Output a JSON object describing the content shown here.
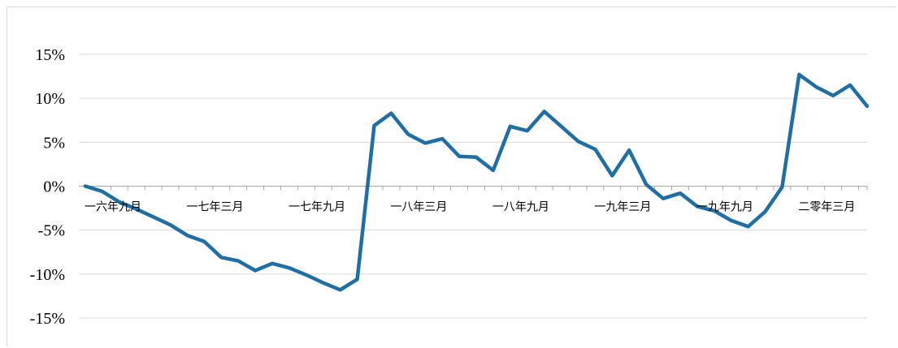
{
  "chart_data": {
    "type": "line",
    "title": "",
    "xlabel": "",
    "ylabel": "",
    "ylim": [
      -15,
      15
    ],
    "yticks": [
      15,
      10,
      5,
      0,
      -5,
      -10,
      -15
    ],
    "ytick_labels": [
      "15%",
      "10%",
      "5%",
      "0%",
      "-5%",
      "-10%",
      "-15%"
    ],
    "grid": true,
    "legend": "none",
    "line_color": "#1f6ea6",
    "grid_color": "#d9d9d9",
    "x_tick_labels": [
      {
        "label": "一六年九月",
        "index": 0
      },
      {
        "label": "一七年三月",
        "index": 6
      },
      {
        "label": "一七年九月",
        "index": 12
      },
      {
        "label": "一八年三月",
        "index": 18
      },
      {
        "label": "一八年九月",
        "index": 24
      },
      {
        "label": "一九年三月",
        "index": 30
      },
      {
        "label": "一九年九月",
        "index": 36
      },
      {
        "label": "二零年三月",
        "index": 42
      }
    ],
    "series": [
      {
        "values": [
          0.0,
          -0.6,
          -1.8,
          -2.6,
          -3.5,
          -4.4,
          -5.6,
          -6.3,
          -8.1,
          -8.5,
          -9.6,
          -8.8,
          -9.3,
          -10.1,
          -11.0,
          -11.8,
          -10.6,
          6.9,
          8.3,
          5.9,
          4.9,
          5.4,
          3.4,
          3.3,
          1.8,
          6.8,
          6.3,
          8.5,
          6.8,
          5.1,
          4.2,
          1.2,
          4.1,
          0.2,
          -1.4,
          -0.8,
          -2.3,
          -2.8,
          -3.9,
          -4.6,
          -2.9,
          -0.1,
          12.7,
          11.3,
          10.3,
          11.5,
          9.1
        ]
      }
    ]
  }
}
